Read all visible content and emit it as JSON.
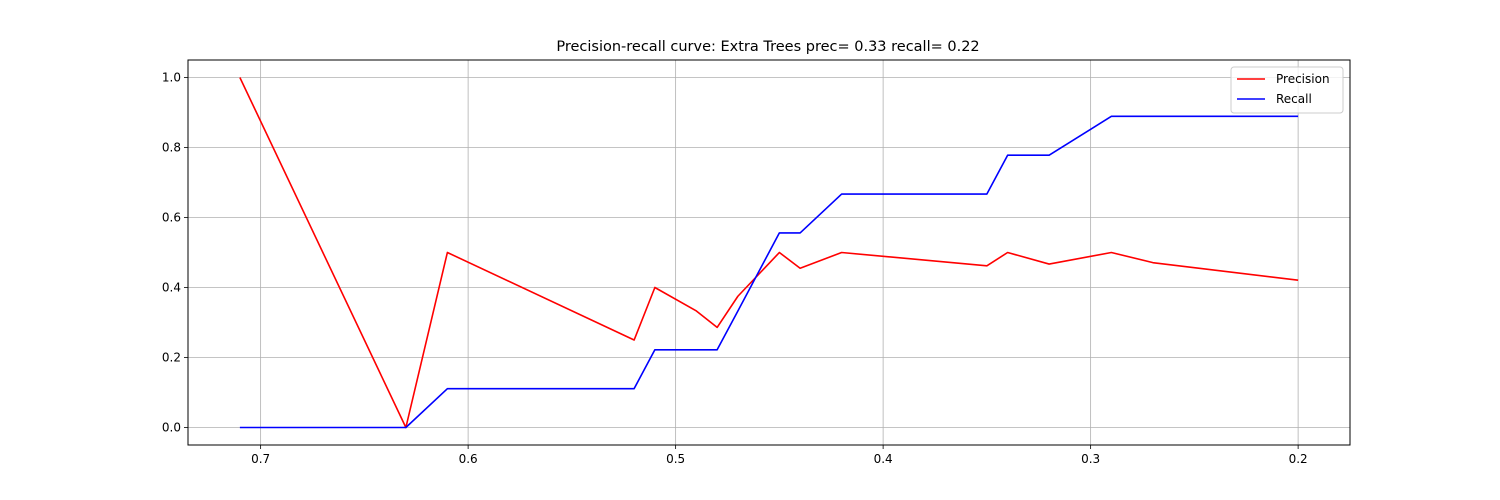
{
  "chart_data": {
    "type": "line",
    "title": "Precision-recall curve: Extra Trees prec= 0.33 recall= 0.22",
    "xlabel": "",
    "ylabel": "",
    "xlim": [
      0.735,
      0.175
    ],
    "x_inverted": true,
    "ylim": [
      -0.05,
      1.05
    ],
    "xticks": [
      0.7,
      0.6,
      0.5,
      0.4,
      0.3,
      0.2
    ],
    "xtick_labels": [
      "0.7",
      "0.6",
      "0.5",
      "0.4",
      "0.3",
      "0.2"
    ],
    "yticks": [
      0.0,
      0.2,
      0.4,
      0.6,
      0.8,
      1.0
    ],
    "ytick_labels": [
      "0.0",
      "0.2",
      "0.4",
      "0.6",
      "0.8",
      "1.0"
    ],
    "grid": true,
    "legend_position": "top-right",
    "series": [
      {
        "name": "Precision",
        "color": "#ff0000",
        "points": [
          [
            0.71,
            1.0
          ],
          [
            0.63,
            0.0
          ],
          [
            0.61,
            0.5
          ],
          [
            0.52,
            0.25
          ],
          [
            0.51,
            0.4
          ],
          [
            0.49,
            0.333
          ],
          [
            0.48,
            0.286
          ],
          [
            0.47,
            0.375
          ],
          [
            0.45,
            0.5
          ],
          [
            0.44,
            0.455
          ],
          [
            0.42,
            0.5
          ],
          [
            0.35,
            0.462
          ],
          [
            0.34,
            0.5
          ],
          [
            0.32,
            0.467
          ],
          [
            0.29,
            0.5
          ],
          [
            0.27,
            0.471
          ],
          [
            0.2,
            0.421
          ]
        ]
      },
      {
        "name": "Recall",
        "color": "#0000ff",
        "points": [
          [
            0.71,
            0.0
          ],
          [
            0.63,
            0.0
          ],
          [
            0.61,
            0.111
          ],
          [
            0.52,
            0.111
          ],
          [
            0.51,
            0.222
          ],
          [
            0.49,
            0.222
          ],
          [
            0.48,
            0.222
          ],
          [
            0.47,
            0.333
          ],
          [
            0.45,
            0.556
          ],
          [
            0.44,
            0.556
          ],
          [
            0.42,
            0.667
          ],
          [
            0.35,
            0.667
          ],
          [
            0.34,
            0.778
          ],
          [
            0.32,
            0.778
          ],
          [
            0.29,
            0.889
          ],
          [
            0.27,
            0.889
          ],
          [
            0.2,
            0.889
          ]
        ]
      }
    ]
  }
}
